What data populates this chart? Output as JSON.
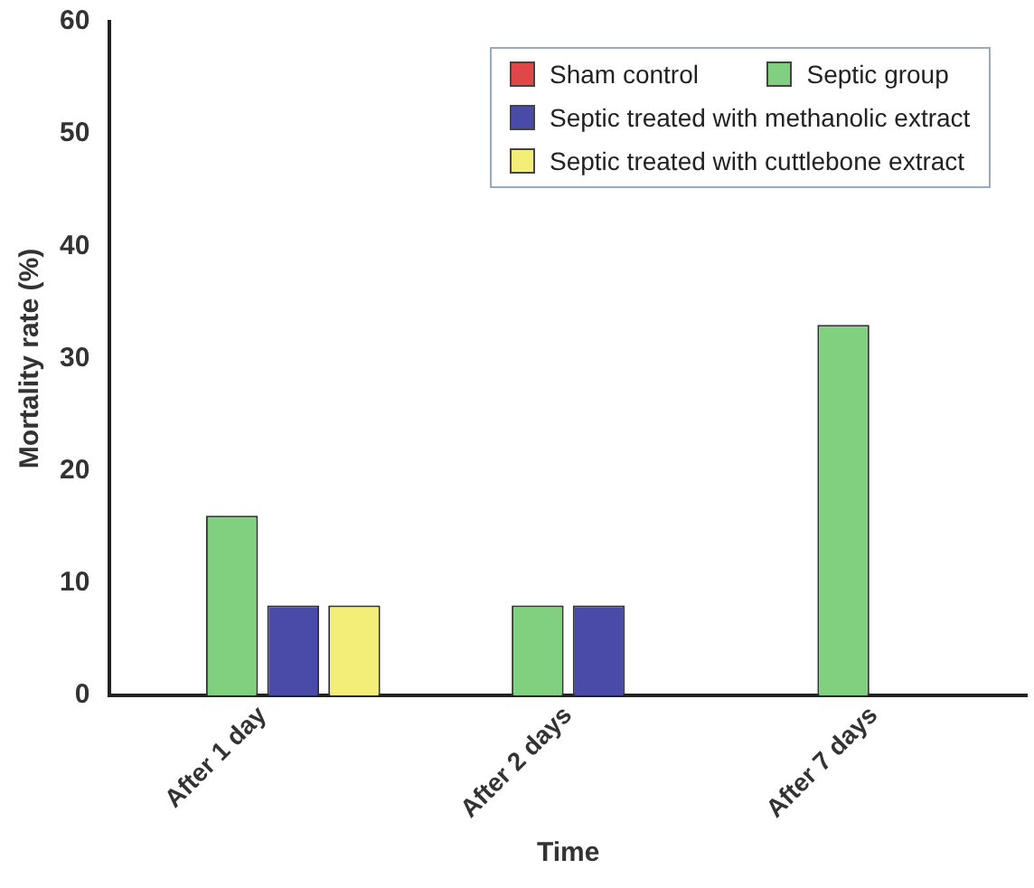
{
  "chart_data": {
    "type": "bar",
    "xlabel": "Time",
    "ylabel": "Mortality rate (%)",
    "categories": [
      "After 1 day",
      "After 2 days",
      "After 7 days"
    ],
    "series": [
      {
        "name": "Sham control",
        "color": "#e04848",
        "values": [
          0,
          0,
          0
        ]
      },
      {
        "name": "Septic group",
        "color": "#80d080",
        "values": [
          16,
          8,
          33
        ]
      },
      {
        "name": "Septic treated with methanolic extract",
        "color": "#4a4aa8",
        "values": [
          8,
          8,
          0
        ]
      },
      {
        "name": "Septic treated with cuttlebone extract",
        "color": "#f2ee78",
        "values": [
          8,
          0,
          0
        ]
      }
    ],
    "ylim": [
      0,
      60
    ],
    "yticks": [
      0,
      10,
      20,
      30,
      40,
      50,
      60
    ],
    "grid": false,
    "legend": "top right"
  }
}
